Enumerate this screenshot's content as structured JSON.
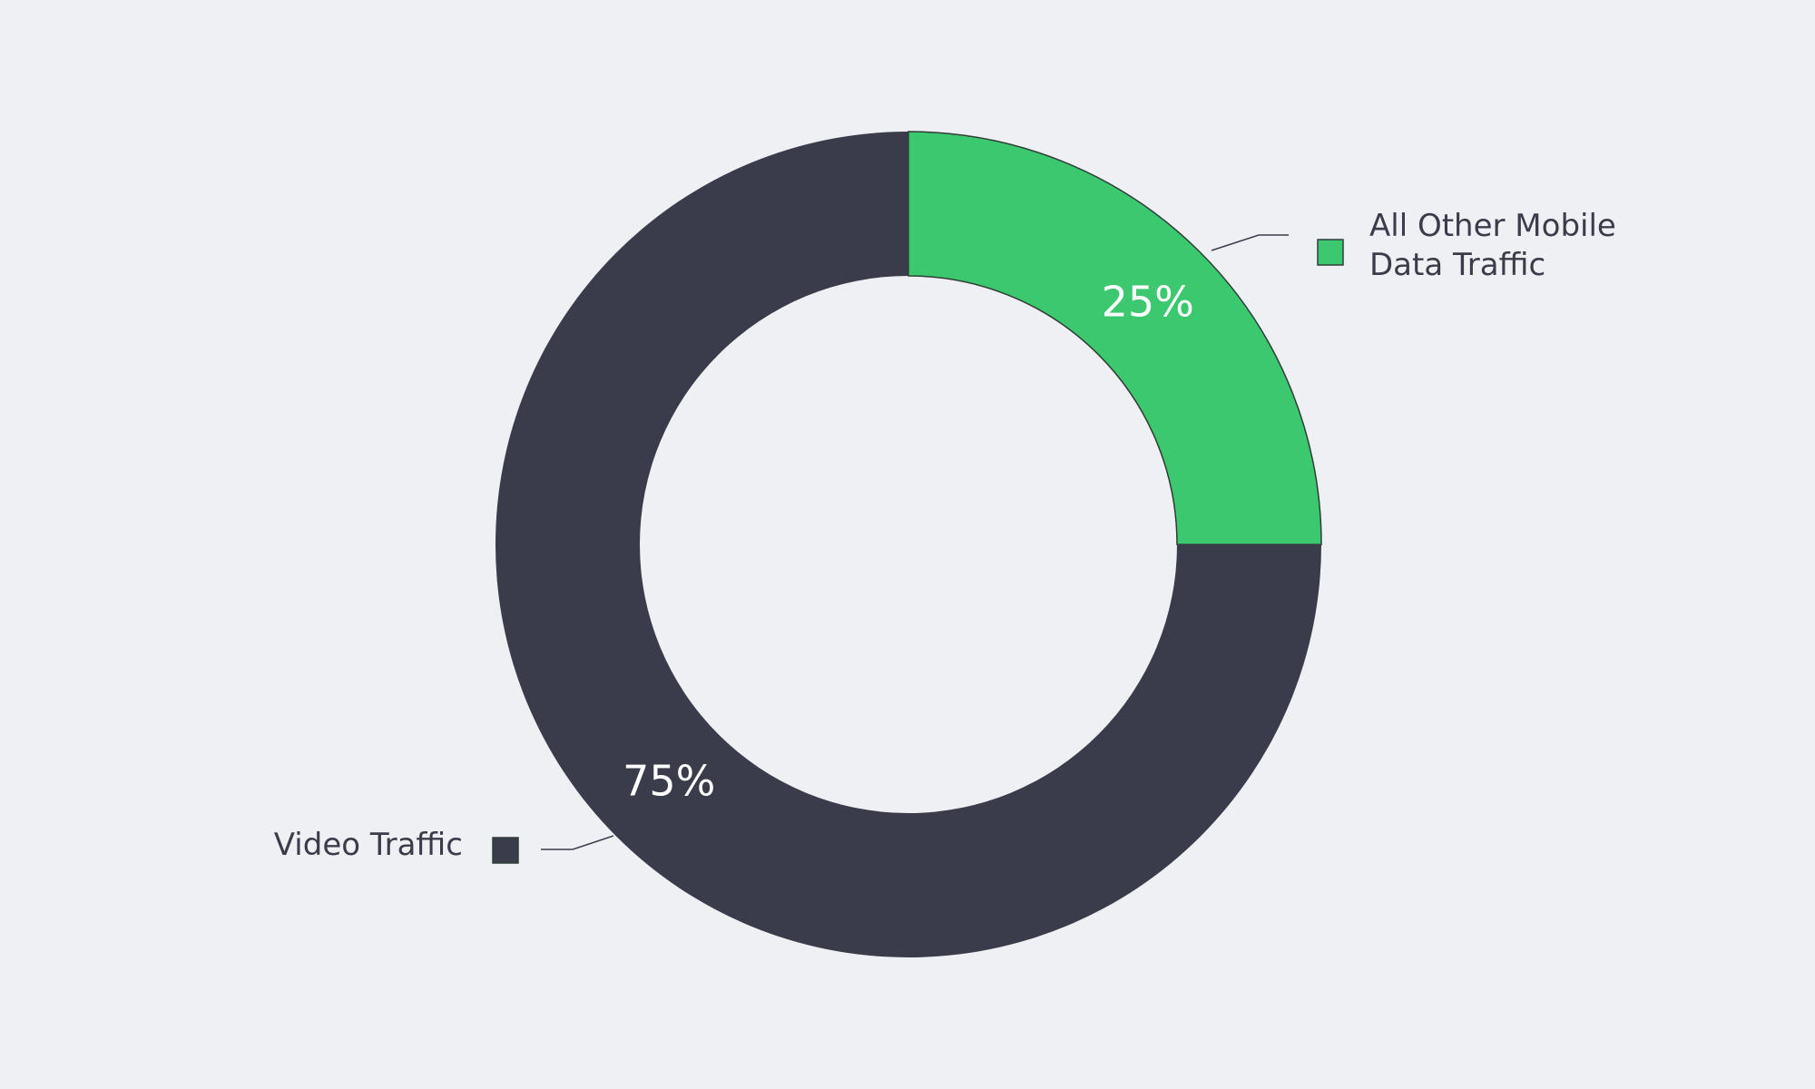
{
  "chart_data": {
    "type": "donut",
    "categories": [
      "All Other Mobile Data Traffic",
      "Video Traffic"
    ],
    "values": [
      25,
      75
    ],
    "value_labels": [
      "25%",
      "75%"
    ],
    "colors": [
      "#3cc86e",
      "#3a3c4b"
    ]
  }
}
